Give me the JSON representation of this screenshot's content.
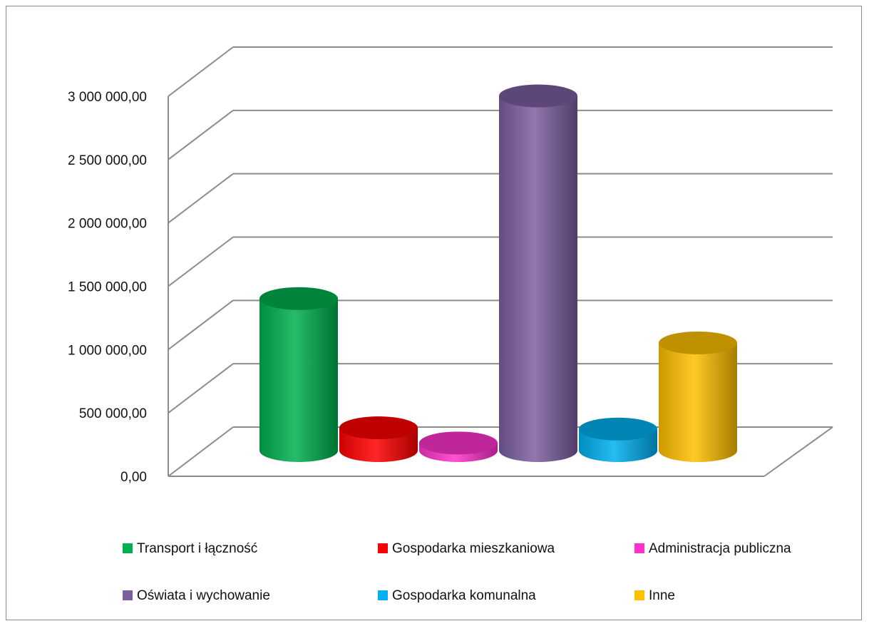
{
  "chart_data": {
    "type": "bar",
    "bar_style": "3d-cylinder",
    "title": "",
    "xlabel": "",
    "ylabel": "",
    "ylim": [
      0,
      3000000
    ],
    "y_ticks": [
      0,
      500000,
      1000000,
      1500000,
      2000000,
      2500000,
      3000000
    ],
    "y_tick_labels": [
      "0,00",
      "500 000,00",
      "1 000 000,00",
      "1 500 000,00",
      "2 000 000,00",
      "2 500 000,00",
      "3 000 000,00"
    ],
    "grid": true,
    "legend_position": "bottom",
    "series": [
      {
        "name": "Transport i łączność",
        "value": 1200000,
        "color": "#00b050"
      },
      {
        "name": "Gospodarka mieszkaniowa",
        "value": 180000,
        "color": "#ff0000"
      },
      {
        "name": "Administracja publiczna",
        "value": 60000,
        "color": "#ff33cc"
      },
      {
        "name": "Oświata i wychowanie",
        "value": 2800000,
        "color": "#7c5fa0"
      },
      {
        "name": "Gospodarka komunalna",
        "value": 170000,
        "color": "#00b0f0"
      },
      {
        "name": "Inne",
        "value": 850000,
        "color": "#ffc000"
      }
    ]
  }
}
